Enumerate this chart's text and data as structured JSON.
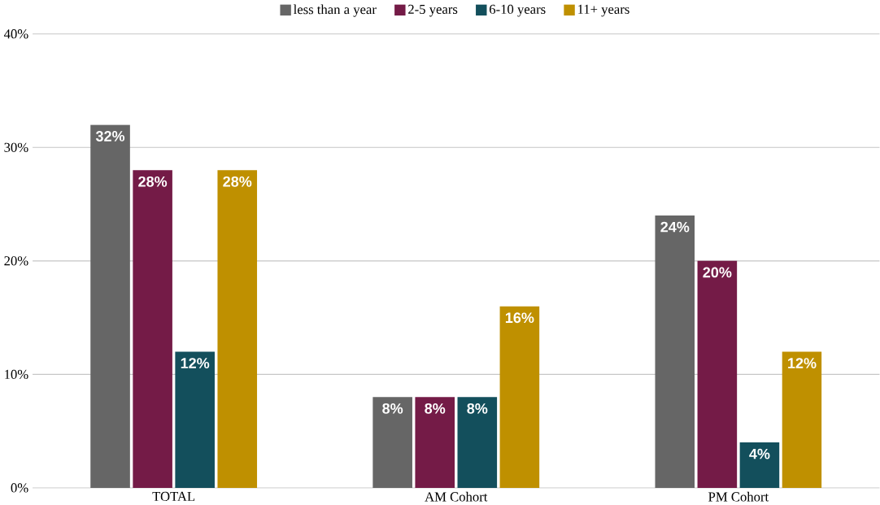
{
  "chart_data": {
    "type": "bar",
    "categories": [
      "TOTAL",
      "AM Cohort",
      "PM Cohort"
    ],
    "series": [
      {
        "name": "less than a year",
        "color": "#666666",
        "values": [
          32,
          8,
          24
        ],
        "value_labels": [
          "32%",
          "8%",
          "24%"
        ]
      },
      {
        "name": "2-5 years",
        "color": "#741b47",
        "values": [
          28,
          8,
          20
        ],
        "value_labels": [
          "28%",
          "8%",
          "20%"
        ]
      },
      {
        "name": "6-10 years",
        "color": "#134f5c",
        "values": [
          12,
          8,
          4
        ],
        "value_labels": [
          "12%",
          "8%",
          "4%"
        ]
      },
      {
        "name": "11+ years",
        "color": "#bf9000",
        "values": [
          28,
          16,
          12
        ],
        "value_labels": [
          "28%",
          "16%",
          "12%"
        ]
      }
    ],
    "ylim": [
      0,
      40
    ],
    "yticks": [
      {
        "value": 0,
        "label": "0%"
      },
      {
        "value": 10,
        "label": "10%"
      },
      {
        "value": 20,
        "label": "20%"
      },
      {
        "value": 30,
        "label": "30%"
      },
      {
        "value": 40,
        "label": "40%"
      }
    ],
    "grid": "y",
    "legend": "top"
  }
}
